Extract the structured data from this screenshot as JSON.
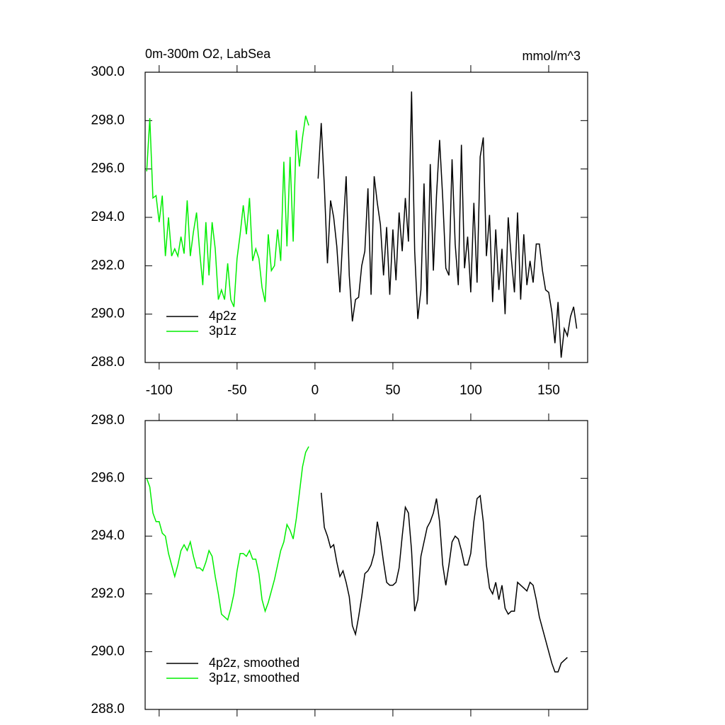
{
  "chart_data": [
    {
      "type": "line",
      "title": "0m-300m O2, LabSea",
      "subtitle": "mmol/m^3",
      "xlim": [
        -109,
        175
      ],
      "xticks": [
        -100,
        -50,
        0,
        50,
        100,
        150
      ],
      "show_xtick_labels": true,
      "ylim": [
        288,
        300
      ],
      "yticks": [
        {
          "value": 288,
          "label": "288.0"
        },
        {
          "value": 290,
          "label": "290.0"
        },
        {
          "value": 292,
          "label": "292.0"
        },
        {
          "value": 294,
          "label": "294.0"
        },
        {
          "value": 296,
          "label": "296.0"
        },
        {
          "value": 298,
          "label": "298.0"
        },
        {
          "value": 300,
          "label": "300.0"
        }
      ],
      "legend": "lower left",
      "series": [
        {
          "name": "4p2z",
          "color": "#000000",
          "x": [
            2,
            4,
            6,
            8,
            10,
            12,
            14,
            16,
            18,
            20,
            22,
            24,
            26,
            28,
            30,
            32,
            34,
            36,
            38,
            40,
            42,
            44,
            46,
            48,
            50,
            52,
            54,
            56,
            58,
            60,
            62,
            64,
            66,
            68,
            70,
            72,
            74,
            76,
            78,
            80,
            82,
            84,
            86,
            88,
            90,
            92,
            94,
            96,
            98,
            100,
            102,
            104,
            106,
            108,
            110,
            112,
            114,
            116,
            118,
            120,
            122,
            124,
            126,
            128,
            130,
            132,
            134,
            136,
            138,
            140,
            142,
            144,
            146,
            148,
            150,
            152,
            154,
            156,
            158,
            160,
            162,
            164,
            166,
            168
          ],
          "values": [
            295.6,
            297.9,
            295.3,
            292.1,
            294.7,
            294.0,
            292.8,
            290.9,
            293.4,
            295.7,
            291.6,
            289.7,
            290.6,
            290.7,
            292.0,
            292.6,
            295.2,
            290.8,
            295.7,
            294.6,
            293.7,
            291.6,
            293.6,
            290.8,
            293.5,
            291.4,
            294.2,
            292.6,
            294.8,
            293.0,
            299.2,
            292.6,
            289.8,
            291.0,
            295.4,
            290.4,
            296.2,
            291.8,
            294.9,
            297.2,
            294.8,
            291.9,
            291.6,
            296.4,
            292.9,
            291.2,
            297.0,
            291.9,
            293.2,
            290.9,
            294.6,
            291.3,
            296.5,
            297.3,
            292.4,
            294.1,
            290.5,
            293.5,
            291.0,
            292.7,
            290.0,
            294.0,
            292.3,
            290.9,
            294.2,
            290.6,
            293.3,
            291.2,
            292.2,
            291.3,
            292.9,
            292.9,
            291.8,
            291.0,
            290.9,
            290.1,
            288.8,
            290.5,
            288.2,
            289.4,
            289.1,
            289.9,
            290.3,
            289.4
          ]
        },
        {
          "name": "3p1z",
          "color": "#00ee00",
          "x": [
            -108,
            -106,
            -104,
            -102,
            -100,
            -98,
            -96,
            -94,
            -92,
            -90,
            -88,
            -86,
            -84,
            -82,
            -80,
            -78,
            -76,
            -74,
            -72,
            -70,
            -68,
            -66,
            -64,
            -62,
            -60,
            -58,
            -56,
            -54,
            -52,
            -50,
            -48,
            -46,
            -44,
            -42,
            -40,
            -38,
            -36,
            -34,
            -32,
            -30,
            -28,
            -26,
            -24,
            -22,
            -20,
            -18,
            -16,
            -14,
            -12,
            -10,
            -8,
            -6,
            -4
          ],
          "values": [
            295.9,
            298.1,
            294.8,
            294.9,
            293.8,
            294.9,
            292.4,
            294.0,
            292.4,
            292.7,
            292.4,
            293.2,
            292.5,
            294.7,
            292.4,
            293.4,
            294.2,
            292.6,
            291.2,
            293.8,
            291.6,
            293.8,
            292.7,
            290.6,
            291.0,
            290.6,
            292.1,
            290.6,
            290.3,
            292.3,
            293.3,
            294.5,
            293.3,
            294.8,
            292.2,
            292.7,
            292.3,
            291.1,
            290.5,
            293.3,
            291.8,
            292.0,
            293.5,
            292.2,
            296.3,
            292.8,
            296.5,
            293.0,
            297.6,
            296.1,
            297.3,
            298.2,
            297.8
          ]
        }
      ]
    },
    {
      "type": "line",
      "xlim": [
        -109,
        175
      ],
      "xticks": [
        -100,
        -50,
        0,
        50,
        100,
        150
      ],
      "show_xtick_labels": false,
      "ylim": [
        288,
        298
      ],
      "yticks": [
        {
          "value": 288,
          "label": "288.0"
        },
        {
          "value": 290,
          "label": "290.0"
        },
        {
          "value": 292,
          "label": "292.0"
        },
        {
          "value": 294,
          "label": "294.0"
        },
        {
          "value": 296,
          "label": "296.0"
        },
        {
          "value": 298,
          "label": "298.0"
        }
      ],
      "legend": "lower left",
      "series": [
        {
          "name": "4p2z, smoothed",
          "color": "#000000",
          "x": [
            4,
            6,
            8,
            10,
            12,
            14,
            16,
            18,
            20,
            22,
            24,
            26,
            28,
            30,
            32,
            34,
            36,
            38,
            40,
            42,
            44,
            46,
            48,
            50,
            52,
            54,
            56,
            58,
            60,
            62,
            64,
            66,
            68,
            70,
            72,
            74,
            76,
            78,
            80,
            82,
            84,
            86,
            88,
            90,
            92,
            94,
            96,
            98,
            100,
            102,
            104,
            106,
            108,
            110,
            112,
            114,
            116,
            118,
            120,
            122,
            124,
            126,
            128,
            130,
            132,
            134,
            136,
            138,
            140,
            142,
            144,
            146,
            148,
            150,
            152,
            154,
            156,
            158,
            160,
            162
          ],
          "values": [
            295.5,
            294.3,
            294.0,
            293.6,
            293.7,
            293.1,
            292.6,
            292.8,
            292.4,
            291.9,
            290.9,
            290.6,
            291.2,
            291.9,
            292.7,
            292.8,
            293.0,
            293.4,
            294.5,
            293.9,
            293.1,
            292.4,
            292.3,
            292.3,
            292.4,
            292.9,
            294.0,
            295.0,
            294.8,
            293.5,
            291.4,
            291.8,
            293.3,
            293.8,
            294.3,
            294.5,
            294.8,
            295.3,
            294.5,
            293.0,
            292.3,
            293.0,
            293.8,
            294.0,
            293.9,
            293.5,
            293.0,
            293.0,
            293.4,
            294.5,
            295.3,
            295.4,
            294.5,
            293.0,
            292.2,
            292.0,
            292.4,
            291.8,
            292.3,
            291.5,
            291.3,
            291.4,
            291.4,
            292.4,
            292.3,
            292.2,
            292.1,
            292.4,
            292.3,
            291.8,
            291.2,
            290.8,
            290.4,
            290.0,
            289.6,
            289.3,
            289.3,
            289.6,
            289.7,
            289.8
          ]
        },
        {
          "name": "3p1z, smoothed",
          "color": "#00ee00",
          "x": [
            -108,
            -106,
            -104,
            -102,
            -100,
            -98,
            -96,
            -94,
            -92,
            -90,
            -88,
            -86,
            -84,
            -82,
            -80,
            -78,
            -76,
            -74,
            -72,
            -70,
            -68,
            -66,
            -64,
            -62,
            -60,
            -58,
            -56,
            -54,
            -52,
            -50,
            -48,
            -46,
            -44,
            -42,
            -40,
            -38,
            -36,
            -34,
            -32,
            -30,
            -28,
            -26,
            -24,
            -22,
            -20,
            -18,
            -16,
            -14,
            -12,
            -10,
            -8,
            -6,
            -4
          ],
          "values": [
            296.0,
            295.7,
            294.8,
            294.5,
            294.5,
            294.1,
            294.0,
            293.4,
            293.0,
            292.6,
            293.0,
            293.5,
            293.7,
            293.5,
            293.8,
            293.3,
            292.9,
            292.9,
            292.8,
            293.1,
            293.5,
            293.3,
            292.6,
            292.0,
            291.3,
            291.2,
            291.1,
            291.5,
            292.0,
            292.8,
            293.4,
            293.4,
            293.3,
            293.5,
            293.2,
            293.2,
            292.7,
            291.8,
            291.4,
            291.7,
            292.1,
            292.5,
            293.0,
            293.5,
            293.8,
            294.4,
            294.2,
            293.9,
            294.6,
            295.5,
            296.4,
            296.9,
            297.1
          ]
        }
      ]
    }
  ]
}
